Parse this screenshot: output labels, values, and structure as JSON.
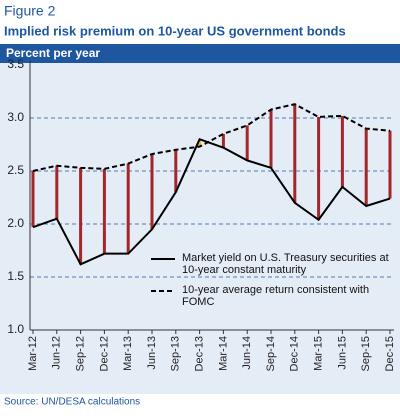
{
  "figure_label": "Figure 2",
  "source": "Source: UN/DESA calculations",
  "chart_data": {
    "type": "line",
    "title": "Implied risk premium on 10-year US government bonds",
    "subtitle": "Percent per year",
    "categories": [
      "Mar-12",
      "Jun-12",
      "Sep-12",
      "Dec-12",
      "Mar-13",
      "Jun-13",
      "Sep-13",
      "Dec-13",
      "Mar-14",
      "Jun-14",
      "Sep-14",
      "Dec-14",
      "Mar-15",
      "Jun-15",
      "Sep-15",
      "Dec-15"
    ],
    "series": [
      {
        "name": "Market yield on U.S. Treasury securities at 10-year constant maturity",
        "color": "#000000",
        "dash": false,
        "values": [
          1.97,
          2.05,
          1.62,
          1.72,
          1.72,
          1.95,
          2.3,
          2.8,
          2.72,
          2.6,
          2.53,
          2.2,
          2.04,
          2.35,
          2.17,
          2.24
        ]
      },
      {
        "name": "10-year average return consistent with FOMC",
        "color": "#000000",
        "dash": true,
        "values": [
          2.5,
          2.55,
          2.53,
          2.52,
          2.57,
          2.66,
          2.7,
          2.73,
          2.85,
          2.93,
          3.08,
          3.13,
          3.01,
          3.02,
          2.9,
          2.88
        ]
      }
    ],
    "spread_color": "#a3262a",
    "spread_negative_color": "#f2b51c",
    "ylim": [
      1.0,
      3.5
    ],
    "yticks": [
      {
        "value": 1.0,
        "label": "1.0"
      },
      {
        "value": 1.5,
        "label": "1.5"
      },
      {
        "value": 2.0,
        "label": "2.0"
      },
      {
        "value": 2.5,
        "label": "2.5"
      },
      {
        "value": 3.0,
        "label": "3.0"
      },
      {
        "value": 3.5,
        "label": "3.5"
      }
    ],
    "grid": true,
    "legend": "lower right"
  }
}
